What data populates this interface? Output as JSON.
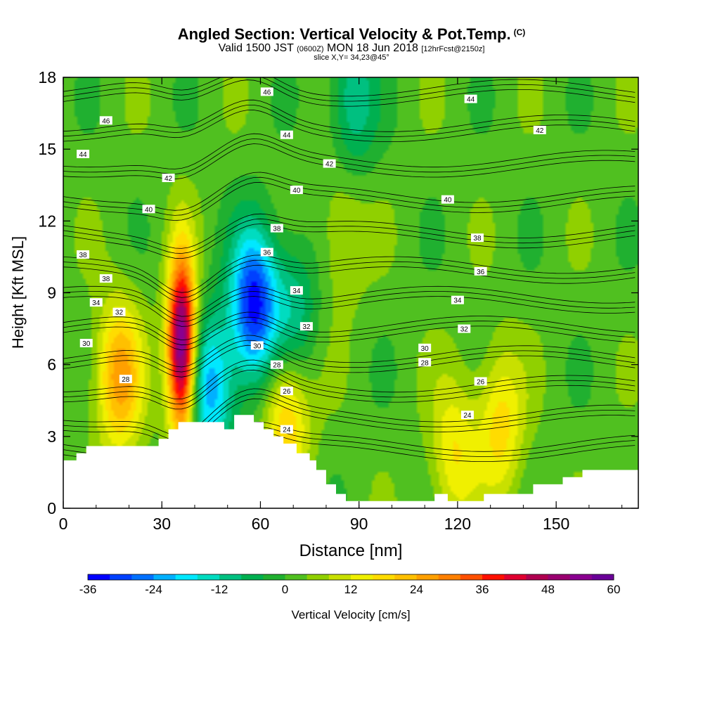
{
  "header": {
    "title": "Angled Section: Vertical Velocity & Pot.Temp.",
    "copyright": "(C)",
    "valid_prefix": "Valid 1500 JST",
    "valid_z": "(0600Z)",
    "valid_date": "MON 18 Jun 2018",
    "forecast": "[12hrFcst@2150z]",
    "slice": "slice X,Y= 34,23@45°"
  },
  "chart_data": {
    "type": "heatmap",
    "title": "Angled Section: Vertical Velocity & Pot.Temp.",
    "xlabel": "Distance [nm]",
    "ylabel": "Height [Kft MSL]",
    "xlim": [
      0,
      175
    ],
    "ylim": [
      0,
      18
    ],
    "x_ticks": [
      0,
      30,
      60,
      90,
      120,
      150
    ],
    "y_ticks": [
      0,
      3,
      6,
      9,
      12,
      15,
      18
    ],
    "background_value_cm_s": 2,
    "updraft_cores": [
      {
        "x": 17,
        "y": 5.5,
        "peak_cm_s": 26
      },
      {
        "x": 36,
        "y": 6.8,
        "peak_cm_s": 60
      },
      {
        "x": 68,
        "y": 4.0,
        "peak_cm_s": 22
      },
      {
        "x": 119,
        "y": 2.3,
        "peak_cm_s": 16
      },
      {
        "x": 133,
        "y": 3.5,
        "peak_cm_s": 18
      },
      {
        "x": 85,
        "y": 11.5,
        "peak_cm_s": 10
      }
    ],
    "downdraft_cores": [
      {
        "x": 58,
        "y": 8.5,
        "peak_cm_s": -34
      },
      {
        "x": 45,
        "y": 5.0,
        "peak_cm_s": -22
      },
      {
        "x": 70,
        "y": 8.0,
        "peak_cm_s": -12
      },
      {
        "x": 88,
        "y": 17.0,
        "peak_cm_s": -12
      }
    ],
    "theta_contours": {
      "levels": [
        24,
        26,
        28,
        30,
        32,
        34,
        36,
        38,
        40,
        42,
        44,
        46
      ],
      "labels": [
        {
          "text": "46",
          "x": 13,
          "y": 16.2
        },
        {
          "text": "44",
          "x": 6,
          "y": 14.8
        },
        {
          "text": "42",
          "x": 32,
          "y": 13.8
        },
        {
          "text": "40",
          "x": 26,
          "y": 12.5
        },
        {
          "text": "38",
          "x": 6,
          "y": 10.6
        },
        {
          "text": "38",
          "x": 13,
          "y": 9.6
        },
        {
          "text": "34",
          "x": 10,
          "y": 8.6
        },
        {
          "text": "32",
          "x": 17,
          "y": 8.2
        },
        {
          "text": "30",
          "x": 7,
          "y": 6.9
        },
        {
          "text": "28",
          "x": 19,
          "y": 5.4
        },
        {
          "text": "46",
          "x": 62,
          "y": 17.4
        },
        {
          "text": "44",
          "x": 68,
          "y": 15.6
        },
        {
          "text": "44",
          "x": 124,
          "y": 17.1
        },
        {
          "text": "42",
          "x": 145,
          "y": 15.8
        },
        {
          "text": "42",
          "x": 81,
          "y": 14.4
        },
        {
          "text": "40",
          "x": 71,
          "y": 13.3
        },
        {
          "text": "40",
          "x": 117,
          "y": 12.9
        },
        {
          "text": "38",
          "x": 65,
          "y": 11.7
        },
        {
          "text": "38",
          "x": 126,
          "y": 11.3
        },
        {
          "text": "36",
          "x": 62,
          "y": 10.7
        },
        {
          "text": "36",
          "x": 127,
          "y": 9.9
        },
        {
          "text": "34",
          "x": 71,
          "y": 9.1
        },
        {
          "text": "34",
          "x": 120,
          "y": 8.7
        },
        {
          "text": "32",
          "x": 74,
          "y": 7.6
        },
        {
          "text": "32",
          "x": 122,
          "y": 7.5
        },
        {
          "text": "30",
          "x": 59,
          "y": 6.8
        },
        {
          "text": "30",
          "x": 110,
          "y": 6.7
        },
        {
          "text": "28",
          "x": 65,
          "y": 6.0
        },
        {
          "text": "28",
          "x": 110,
          "y": 6.1
        },
        {
          "text": "26",
          "x": 68,
          "y": 4.9
        },
        {
          "text": "26",
          "x": 127,
          "y": 5.3
        },
        {
          "text": "24",
          "x": 68,
          "y": 3.3
        },
        {
          "text": "24",
          "x": 123,
          "y": 3.9
        }
      ]
    },
    "terrain_profile": [
      [
        0,
        2.0
      ],
      [
        4,
        2.0
      ],
      [
        4,
        2.3
      ],
      [
        7,
        2.3
      ],
      [
        7,
        2.6
      ],
      [
        29,
        2.6
      ],
      [
        29,
        2.9
      ],
      [
        32,
        2.9
      ],
      [
        32,
        3.3
      ],
      [
        35,
        3.3
      ],
      [
        35,
        3.6
      ],
      [
        49,
        3.6
      ],
      [
        49,
        3.3
      ],
      [
        52,
        3.3
      ],
      [
        52,
        3.9
      ],
      [
        58,
        3.9
      ],
      [
        58,
        3.6
      ],
      [
        61,
        3.6
      ],
      [
        61,
        3.3
      ],
      [
        64,
        3.3
      ],
      [
        64,
        3.0
      ],
      [
        67,
        3.0
      ],
      [
        67,
        2.7
      ],
      [
        71,
        2.7
      ],
      [
        71,
        2.3
      ],
      [
        75,
        2.3
      ],
      [
        75,
        2.0
      ],
      [
        77,
        2.0
      ],
      [
        77,
        1.6
      ],
      [
        80,
        1.6
      ],
      [
        80,
        1.0
      ],
      [
        83,
        1.0
      ],
      [
        83,
        0.6
      ],
      [
        86,
        0.6
      ],
      [
        86,
        0.3
      ],
      [
        113,
        0.3
      ],
      [
        113,
        0.6
      ],
      [
        117,
        0.6
      ],
      [
        117,
        0.3
      ],
      [
        128,
        0.3
      ],
      [
        128,
        0.6
      ],
      [
        143,
        0.6
      ],
      [
        143,
        1.0
      ],
      [
        152,
        1.0
      ],
      [
        152,
        1.3
      ],
      [
        158,
        1.3
      ],
      [
        158,
        1.6
      ],
      [
        175,
        1.6
      ]
    ],
    "colorbar": {
      "label": "Vertical Velocity [cm/s]",
      "tick_labels": [
        "-36",
        "-24",
        "-12",
        "0",
        "12",
        "24",
        "36",
        "48",
        "60"
      ],
      "min": -36,
      "max": 60,
      "step": 4,
      "colors": [
        "#0000ff",
        "#0040ff",
        "#0070ff",
        "#00b0ff",
        "#00e8ff",
        "#00dcc0",
        "#00c080",
        "#00b050",
        "#20b030",
        "#50c020",
        "#90d000",
        "#c8e000",
        "#f0f000",
        "#ffdc00",
        "#ffc000",
        "#ffa000",
        "#ff8000",
        "#ff5000",
        "#ff1000",
        "#e00030",
        "#b00050",
        "#9a0070",
        "#8a0090",
        "#6a0098"
      ]
    }
  }
}
